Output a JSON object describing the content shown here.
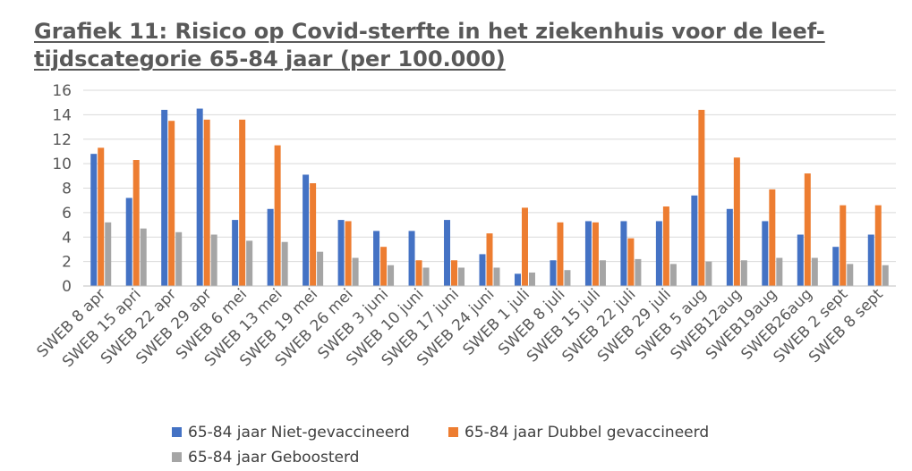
{
  "chart_data": {
    "type": "bar",
    "title": "Grafiek 11: Risico op Covid-sterfte in het ziekenhuis voor de leef-tijdscategorie 65-84 jaar (per 100.000)",
    "categories": [
      "SWEB 8 apr",
      "SWEB 15 apri",
      "SWEB 22 apr",
      "SWEB 29 apr",
      "SWEB 6 mei",
      "SWEB 13 mei",
      "SWEB 19 mei",
      "SWEB 26 mei",
      "SWEB 3 juni",
      "SWEB 10 juni",
      "SWEB 17 juni",
      "SWEB 24 juni",
      "SWEB 1 juli",
      "SWEB 8 juli",
      "SWEB 15 juli",
      "SWEB 22 juli",
      "SWEB 29 juli",
      "SWEB 5 aug",
      "SWEB12aug",
      "SWEB19aug",
      "SWEB26aug",
      "SWEB 2 sept",
      "SWEB 8 sept"
    ],
    "series": [
      {
        "name": "65-84 jaar Niet-gevaccineerd",
        "color": "#4472C4",
        "values": [
          10.8,
          7.2,
          14.4,
          14.5,
          5.4,
          6.3,
          9.1,
          5.4,
          4.5,
          4.5,
          5.4,
          2.6,
          1.0,
          2.1,
          5.3,
          5.3,
          5.3,
          7.4,
          6.3,
          5.3,
          4.2,
          3.2,
          4.2
        ]
      },
      {
        "name": "65-84 jaar Dubbel gevaccineerd",
        "color": "#ED7D31",
        "values": [
          11.3,
          10.3,
          13.5,
          13.6,
          13.6,
          11.5,
          8.4,
          5.3,
          3.2,
          2.1,
          2.1,
          4.3,
          6.4,
          5.2,
          5.2,
          3.9,
          6.5,
          14.4,
          10.5,
          7.9,
          9.2,
          6.6,
          6.6
        ]
      },
      {
        "name": "65-84 jaar Geboosterd",
        "color": "#A5A5A5",
        "values": [
          5.2,
          4.7,
          4.4,
          4.2,
          3.7,
          3.6,
          2.8,
          2.3,
          1.7,
          1.5,
          1.5,
          1.5,
          1.1,
          1.3,
          2.1,
          2.2,
          1.8,
          2.0,
          2.1,
          2.3,
          2.3,
          1.8,
          1.7
        ]
      }
    ],
    "ylim": [
      0,
      16
    ],
    "yticks": [
      "0",
      "2",
      "4",
      "6",
      "8",
      "10",
      "12",
      "14",
      "16"
    ],
    "grid": true,
    "legend_position": "bottom",
    "gridline_color": "#D9D9D9"
  }
}
